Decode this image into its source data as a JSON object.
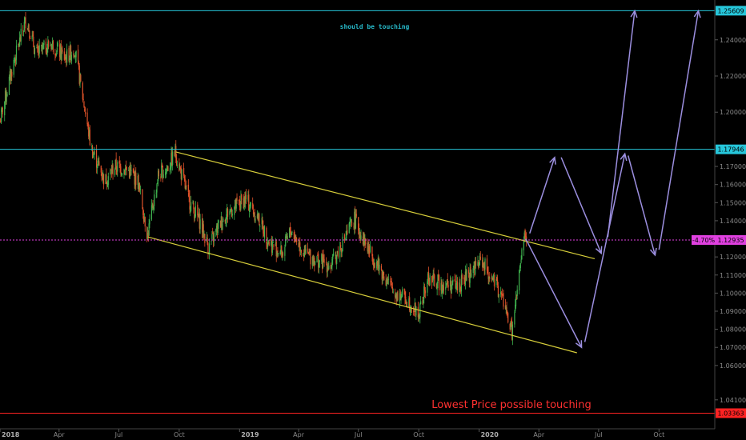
{
  "chart_data": {
    "type": "candlestick",
    "y_axis": {
      "range": [
        1.025,
        1.262
      ],
      "ticks": [
        "1.24000",
        "1.22000",
        "1.20000",
        "1.17000",
        "1.16000",
        "1.15000",
        "1.14000",
        "1.12000",
        "1.11000",
        "1.10000",
        "1.09000",
        "1.08000",
        "1.07000",
        "1.06000",
        "1.04100"
      ]
    },
    "x_axis": {
      "range": [
        "2018-01-01",
        "2020-12-25"
      ],
      "ticks": [
        {
          "label": "2018",
          "date": "2018-01-01",
          "year": true
        },
        {
          "label": "Apr",
          "date": "2018-04-01"
        },
        {
          "label": "Jul",
          "date": "2018-07-01"
        },
        {
          "label": "Oct",
          "date": "2018-10-01"
        },
        {
          "label": "2019",
          "date": "2019-01-01",
          "year": true
        },
        {
          "label": "Apr",
          "date": "2019-04-01"
        },
        {
          "label": "Jul",
          "date": "2019-07-01"
        },
        {
          "label": "Oct",
          "date": "2019-10-01"
        },
        {
          "label": "2020",
          "date": "2020-01-01",
          "year": true
        },
        {
          "label": "Apr",
          "date": "2020-04-01"
        },
        {
          "label": "Jul",
          "date": "2020-07-01"
        },
        {
          "label": "Oct",
          "date": "2020-10-01"
        }
      ]
    },
    "price_path": [
      [
        "2018-01-01",
        1.195
      ],
      [
        "2018-01-20",
        1.225
      ],
      [
        "2018-02-10",
        1.252
      ],
      [
        "2018-02-25",
        1.232
      ],
      [
        "2018-03-20",
        1.238
      ],
      [
        "2018-04-10",
        1.23
      ],
      [
        "2018-04-25",
        1.235
      ],
      [
        "2018-05-20",
        1.18
      ],
      [
        "2018-06-10",
        1.162
      ],
      [
        "2018-06-25",
        1.17
      ],
      [
        "2018-07-15",
        1.168
      ],
      [
        "2018-07-30",
        1.162
      ],
      [
        "2018-08-14",
        1.132
      ],
      [
        "2018-08-30",
        1.165
      ],
      [
        "2018-09-15",
        1.17
      ],
      [
        "2018-09-25",
        1.178
      ],
      [
        "2018-10-15",
        1.152
      ],
      [
        "2018-11-01",
        1.14
      ],
      [
        "2018-11-15",
        1.125
      ],
      [
        "2018-12-01",
        1.138
      ],
      [
        "2018-12-15",
        1.145
      ],
      [
        "2019-01-10",
        1.152
      ],
      [
        "2019-02-01",
        1.14
      ],
      [
        "2019-02-15",
        1.128
      ],
      [
        "2019-03-07",
        1.122
      ],
      [
        "2019-03-20",
        1.135
      ],
      [
        "2019-04-10",
        1.122
      ],
      [
        "2019-05-01",
        1.118
      ],
      [
        "2019-05-20",
        1.115
      ],
      [
        "2019-06-10",
        1.13
      ],
      [
        "2019-06-25",
        1.141
      ],
      [
        "2019-07-15",
        1.125
      ],
      [
        "2019-08-05",
        1.112
      ],
      [
        "2019-08-25",
        1.1
      ],
      [
        "2019-09-10",
        1.098
      ],
      [
        "2019-10-01",
        1.088
      ],
      [
        "2019-10-15",
        1.108
      ],
      [
        "2019-11-05",
        1.105
      ],
      [
        "2019-12-01",
        1.104
      ],
      [
        "2019-12-20",
        1.112
      ],
      [
        "2020-01-05",
        1.118
      ],
      [
        "2020-01-20",
        1.108
      ],
      [
        "2020-02-05",
        1.098
      ],
      [
        "2020-02-20",
        1.078
      ],
      [
        "2020-03-05",
        1.118
      ],
      [
        "2020-03-10",
        1.133
      ],
      [
        "2020-03-15",
        1.125
      ]
    ],
    "channel": {
      "color": "#d6cd3a",
      "upper": [
        [
          "2018-09-26",
          1.178
        ],
        [
          "2020-06-25",
          1.119
        ]
      ],
      "lower": [
        [
          "2018-08-15",
          1.131
        ],
        [
          "2020-05-29",
          1.067
        ]
      ]
    },
    "horizontal_lines": [
      {
        "price": 1.25609,
        "label": "1.25609",
        "color": "#26c6da"
      },
      {
        "price": 1.17946,
        "label": "1.17946",
        "color": "#26c6da"
      },
      {
        "price": 1.12935,
        "label": "1.12935",
        "pct": "-4.70%",
        "color": "#e040e0",
        "dashed": true
      },
      {
        "price": 1.03363,
        "label": "1.03363",
        "color": "#ff2222"
      }
    ],
    "projection_arrows": {
      "color": "#9c8fe0",
      "segments": [
        [
          [
            "2020-03-18",
            1.133
          ],
          [
            "2020-04-25",
            1.175
          ]
        ],
        [
          [
            "2020-05-05",
            1.175
          ],
          [
            "2020-07-05",
            1.122
          ]
        ],
        [
          [
            "2020-07-15",
            1.131
          ],
          [
            "2020-08-25",
            1.256
          ]
        ],
        [
          [
            "2020-03-12",
            1.13
          ],
          [
            "2020-06-05",
            1.07
          ]
        ],
        [
          [
            "2020-06-10",
            1.073
          ],
          [
            "2020-08-10",
            1.177
          ]
        ],
        [
          [
            "2020-08-15",
            1.176
          ],
          [
            "2020-09-25",
            1.121
          ]
        ],
        [
          [
            "2020-10-01",
            1.124
          ],
          [
            "2020-11-30",
            1.256
          ]
        ]
      ]
    },
    "annotations": {
      "touching": "should be touching",
      "lowest": "Lowest Price possible touching"
    }
  }
}
